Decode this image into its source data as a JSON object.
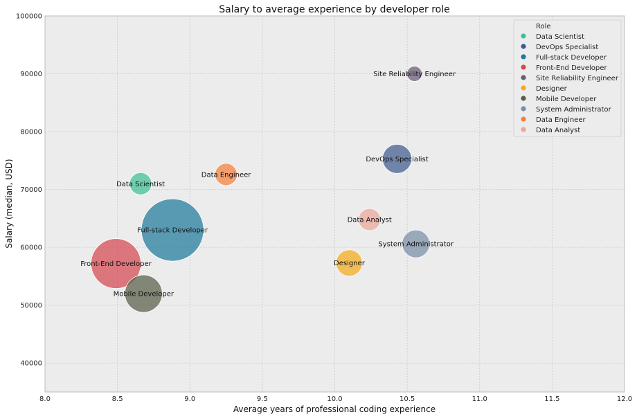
{
  "chart_data": {
    "type": "scatter",
    "title": "Salary to average experience by developer role",
    "xlabel": "Average years of professional coding experience",
    "ylabel": "Salary (median, USD)",
    "xlim": [
      8.0,
      12.0
    ],
    "ylim": [
      35000,
      100000
    ],
    "xticks": [
      "8.0",
      "8.5",
      "9.0",
      "9.5",
      "10.0",
      "10.5",
      "11.0",
      "11.5",
      "12.0"
    ],
    "yticks": [
      "40000",
      "50000",
      "60000",
      "70000",
      "80000",
      "90000",
      "100000"
    ],
    "grid": true,
    "legend_title": "Role",
    "legend_position": "top-right",
    "series": [
      {
        "name": "Data Scientist",
        "x": 8.66,
        "y": 71000,
        "size": 16,
        "color": "#3fbf94"
      },
      {
        "name": "DevOps Specialist",
        "x": 10.43,
        "y": 75300,
        "size": 21,
        "color": "#3f5b8e"
      },
      {
        "name": "Full-stack Developer",
        "x": 8.88,
        "y": 63000,
        "size": 45,
        "color": "#1e7a9a"
      },
      {
        "name": "Front-End Developer",
        "x": 8.49,
        "y": 57200,
        "size": 36,
        "color": "#d44850"
      },
      {
        "name": "Site Reliability Engineer",
        "x": 10.55,
        "y": 90000,
        "size": 11,
        "color": "#6b5a76"
      },
      {
        "name": "Designer",
        "x": 10.1,
        "y": 57300,
        "size": 19,
        "color": "#f4aa1b"
      },
      {
        "name": "Mobile Developer",
        "x": 8.68,
        "y": 52000,
        "size": 27,
        "color": "#585e4a"
      },
      {
        "name": "System Administrator",
        "x": 10.56,
        "y": 60600,
        "size": 20,
        "color": "#7a8ea8"
      },
      {
        "name": "Data Engineer",
        "x": 9.25,
        "y": 72600,
        "size": 16,
        "color": "#f5803f"
      },
      {
        "name": "Data Analyst",
        "x": 10.24,
        "y": 64800,
        "size": 16,
        "color": "#eaa69a"
      }
    ]
  }
}
